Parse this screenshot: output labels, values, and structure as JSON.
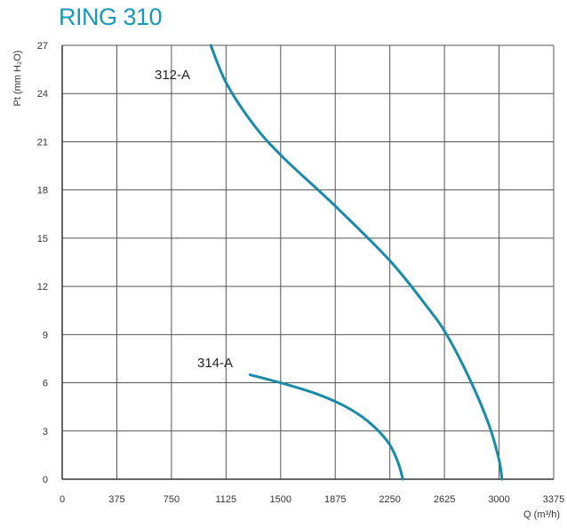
{
  "chart_data": {
    "type": "line",
    "title": "RING 310",
    "xlabel": "Q (m³/h)",
    "ylabel": "Pt (mm H₂O)",
    "xlim": [
      0,
      3375
    ],
    "ylim": [
      0,
      27
    ],
    "x_ticks": [
      "0",
      "375",
      "750",
      "1125",
      "1500",
      "1875",
      "2250",
      "2625",
      "3000",
      "3375"
    ],
    "y_ticks": [
      "0",
      "3",
      "6",
      "9",
      "12",
      "15",
      "18",
      "21",
      "24",
      "27"
    ],
    "grid": true,
    "series": [
      {
        "name": "312-A",
        "color": "#1a8aa6",
        "points": [
          [
            1020,
            27
          ],
          [
            1130,
            24.6
          ],
          [
            1320,
            22.0
          ],
          [
            1520,
            20.0
          ],
          [
            1875,
            17.0
          ],
          [
            2250,
            13.6
          ],
          [
            2500,
            10.8
          ],
          [
            2640,
            9.0
          ],
          [
            2800,
            6.2
          ],
          [
            2930,
            3.4
          ],
          [
            3000,
            1.2
          ],
          [
            3020,
            0
          ]
        ]
      },
      {
        "name": "314-A",
        "color": "#1a8aa6",
        "points": [
          [
            1290,
            6.5
          ],
          [
            1500,
            6.0
          ],
          [
            1750,
            5.3
          ],
          [
            1950,
            4.5
          ],
          [
            2100,
            3.6
          ],
          [
            2230,
            2.4
          ],
          [
            2300,
            1.2
          ],
          [
            2340,
            0
          ]
        ]
      }
    ],
    "annotations": [
      "312-A",
      "314-A"
    ]
  }
}
